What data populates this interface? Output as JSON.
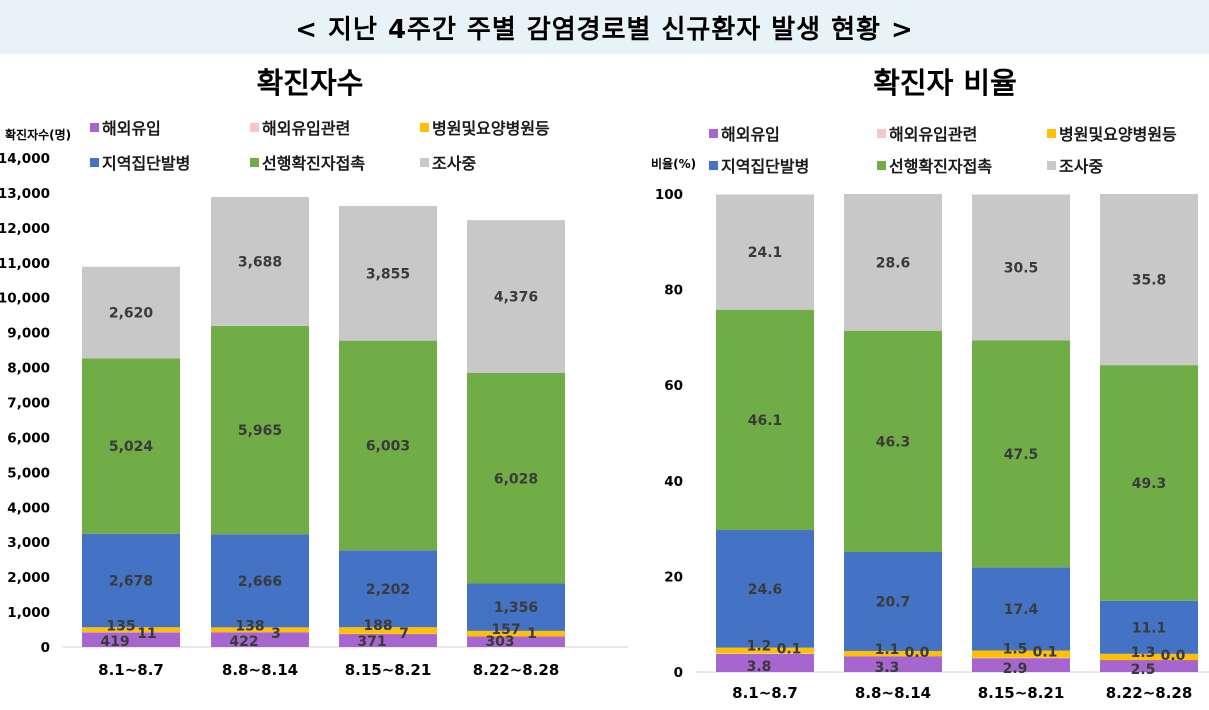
{
  "header": {
    "title": "< 지난 4주간 주별 감염경로별 신규환자 발생 현황 >"
  },
  "legend": {
    "items": [
      {
        "label": "해외유입",
        "color": "#a665cf"
      },
      {
        "label": "해외유입관련",
        "color": "#f7c6c6"
      },
      {
        "label": "병원및요양병원등",
        "color": "#ffc000"
      },
      {
        "label": "지역집단발병",
        "color": "#4472c4"
      },
      {
        "label": "선행확진자접촉",
        "color": "#70ad47"
      },
      {
        "label": "조사중",
        "color": "#c8c8c8"
      }
    ]
  },
  "chart_data": [
    {
      "type": "bar",
      "stacked": true,
      "title": "확진자수",
      "ylabel": "확진자수(명)",
      "ylim": [
        0,
        14000
      ],
      "ytick_step": 1000,
      "ytick_labels": [
        "0",
        "1,000",
        "2,000",
        "3,000",
        "4,000",
        "5,000",
        "6,000",
        "7,000",
        "8,000",
        "9,000",
        "10,000",
        "11,000",
        "12,000",
        "13,000",
        "14,000"
      ],
      "categories": [
        "8.1~8.7",
        "8.8~8.14",
        "8.15~8.21",
        "8.22~8.28"
      ],
      "series": [
        {
          "name": "해외유입",
          "values": [
            419,
            422,
            371,
            303
          ],
          "labels": [
            "419",
            "422",
            "371",
            "303"
          ]
        },
        {
          "name": "해외유입관련",
          "values": [
            11,
            3,
            7,
            1
          ],
          "labels": [
            "11",
            "3",
            "7",
            "1"
          ]
        },
        {
          "name": "병원및요양병원등",
          "values": [
            135,
            138,
            188,
            157
          ],
          "labels": [
            "135",
            "138",
            "188",
            "157"
          ]
        },
        {
          "name": "지역집단발병",
          "values": [
            2678,
            2666,
            2202,
            1356
          ],
          "labels": [
            "2,678",
            "2,666",
            "2,202",
            "1,356"
          ]
        },
        {
          "name": "선행확진자접촉",
          "values": [
            5024,
            5965,
            6003,
            6028
          ],
          "labels": [
            "5,024",
            "5,965",
            "6,003",
            "6,028"
          ]
        },
        {
          "name": "조사중",
          "values": [
            2620,
            3688,
            3855,
            4376
          ],
          "labels": [
            "2,620",
            "3,688",
            "3,855",
            "4,376"
          ]
        }
      ]
    },
    {
      "type": "bar",
      "stacked": true,
      "title": "확진자 비율",
      "ylabel": "비율(%)",
      "ylim": [
        0,
        100
      ],
      "ytick_step": 20,
      "ytick_labels": [
        "0",
        "20",
        "40",
        "60",
        "80",
        "100"
      ],
      "categories": [
        "8.1~8.7",
        "8.8~8.14",
        "8.15~8.21",
        "8.22~8.28"
      ],
      "series": [
        {
          "name": "해외유입",
          "values": [
            3.8,
            3.3,
            2.9,
            2.5
          ],
          "labels": [
            "3.8",
            "3.3",
            "2.9",
            "2.5"
          ]
        },
        {
          "name": "해외유입관련",
          "values": [
            0.1,
            0.0,
            0.1,
            0.0
          ],
          "labels": [
            "0.1",
            "0.0",
            "0.1",
            "0.0"
          ]
        },
        {
          "name": "병원및요양병원등",
          "values": [
            1.2,
            1.1,
            1.5,
            1.3
          ],
          "labels": [
            "1.2",
            "1.1",
            "1.5",
            "1.3"
          ]
        },
        {
          "name": "지역집단발병",
          "values": [
            24.6,
            20.7,
            17.4,
            11.1
          ],
          "labels": [
            "24.6",
            "20.7",
            "17.4",
            "11.1"
          ]
        },
        {
          "name": "선행확진자접촉",
          "values": [
            46.1,
            46.3,
            47.5,
            49.3
          ],
          "labels": [
            "46.1",
            "46.3",
            "47.5",
            "49.3"
          ]
        },
        {
          "name": "조사중",
          "values": [
            24.1,
            28.6,
            30.5,
            35.8
          ],
          "labels": [
            "24.1",
            "28.6",
            "30.5",
            "35.8"
          ]
        }
      ]
    }
  ]
}
